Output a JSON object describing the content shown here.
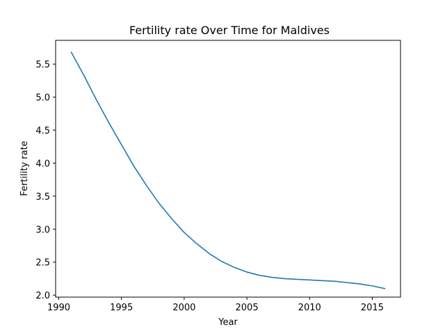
{
  "chart_data": {
    "type": "line",
    "title": "Fertility rate Over Time for Maldives",
    "xlabel": "Year",
    "ylabel": "Fertility rate",
    "xlim": [
      1989.75,
      2017.25
    ],
    "ylim": [
      1.97,
      5.86
    ],
    "xticks": [
      1990,
      1995,
      2000,
      2005,
      2010,
      2015
    ],
    "yticks": [
      2.0,
      2.5,
      3.0,
      3.5,
      4.0,
      4.5,
      5.0,
      5.5
    ],
    "grid": false,
    "series": [
      {
        "color": "#1f77b4",
        "x": [
          1991,
          1992,
          1993,
          1994,
          1995,
          1996,
          1997,
          1998,
          1999,
          2000,
          2001,
          2002,
          2003,
          2004,
          2005,
          2006,
          2007,
          2008,
          2009,
          2010,
          2011,
          2012,
          2013,
          2014,
          2015,
          2016
        ],
        "y": [
          5.68,
          5.33,
          4.96,
          4.61,
          4.28,
          3.95,
          3.66,
          3.39,
          3.16,
          2.95,
          2.78,
          2.63,
          2.51,
          2.42,
          2.35,
          2.3,
          2.27,
          2.25,
          2.24,
          2.23,
          2.22,
          2.21,
          2.19,
          2.17,
          2.14,
          2.1
        ]
      }
    ]
  }
}
